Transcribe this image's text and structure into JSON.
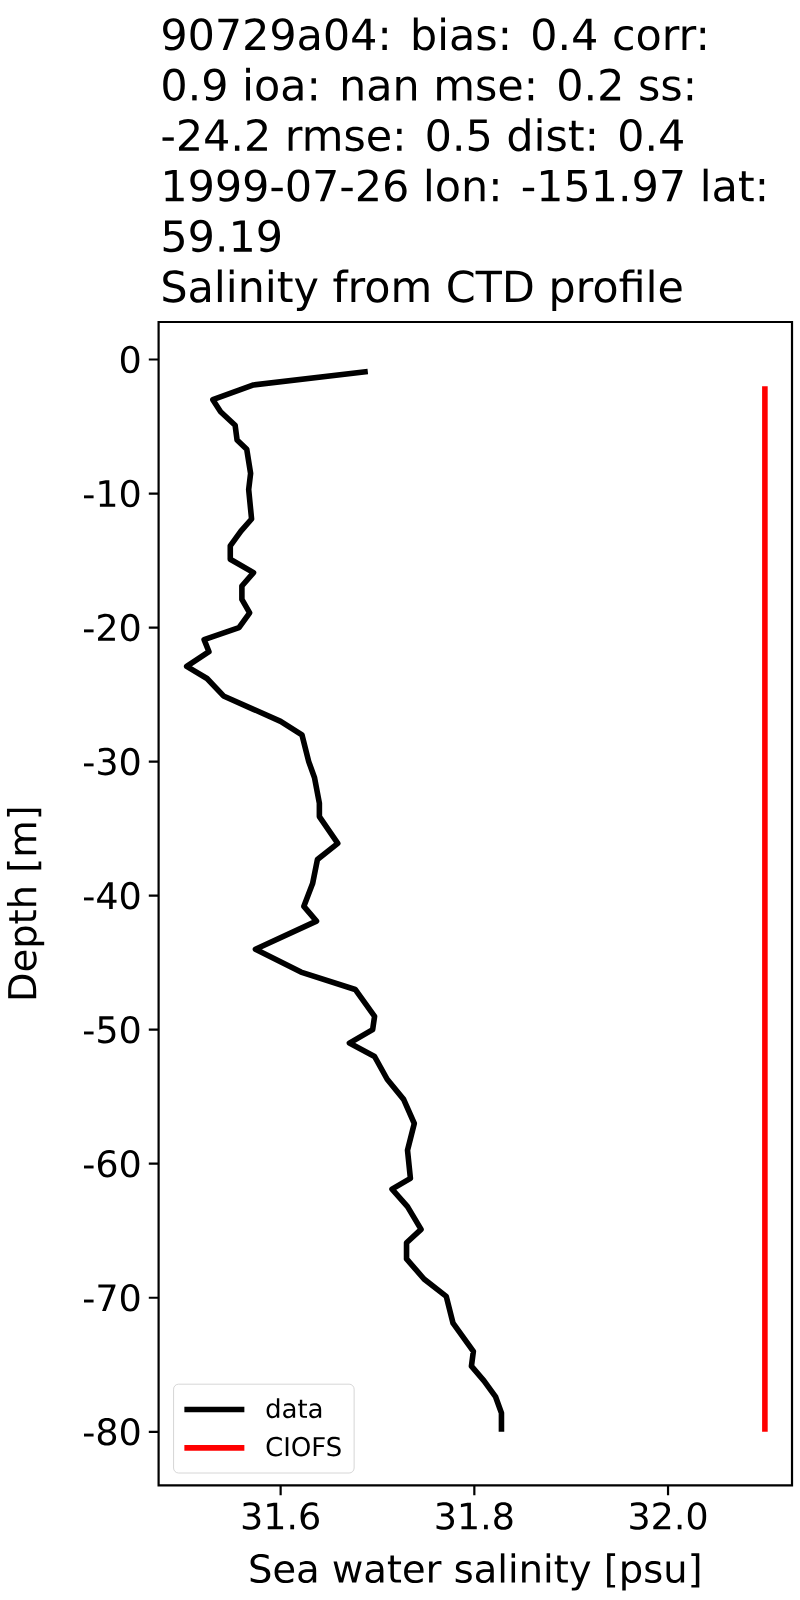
{
  "chart_data": {
    "type": "line",
    "title": "90729a04: bias: 0.4 corr: 0.9 ioa: nan mse: 0.2 ss: -24.2 rmse: 0.5 dist: 0.4",
    "subtitle": "1999-07-26 lon: -151.97 lat: 59.19",
    "annotations": [
      "Salinity from CTD profile"
    ],
    "xlabel": "Sea water salinity [psu]",
    "ylabel": "Depth [m]",
    "series": [
      {
        "name": "data",
        "color": "#000000",
        "x": [
          31.69,
          31.572,
          31.53,
          31.538,
          31.553,
          31.555,
          31.565,
          31.569,
          31.567,
          31.57,
          31.559,
          31.548,
          31.548,
          31.572,
          31.56,
          31.56,
          31.568,
          31.557,
          31.521,
          31.526,
          31.503,
          31.524,
          31.541,
          31.572,
          31.6,
          31.622,
          31.629,
          31.635,
          31.64,
          31.64,
          31.659,
          31.638,
          31.633,
          31.624,
          31.637,
          31.574,
          31.621,
          31.677,
          31.697,
          31.695,
          31.671,
          31.697,
          31.71,
          31.727,
          31.738,
          31.731,
          31.734,
          31.715,
          31.731,
          31.745,
          31.73,
          31.73,
          31.748,
          31.771,
          31.778,
          31.794,
          31.799,
          31.797,
          31.81,
          31.822,
          31.828,
          31.828
        ],
        "values": [
          -0.9,
          -1.9,
          -3.0,
          -3.9,
          -4.9,
          -6.0,
          -6.7,
          -8.5,
          -9.7,
          -11.9,
          -12.8,
          -13.9,
          -14.9,
          -15.9,
          -16.9,
          -17.9,
          -18.9,
          -20.0,
          -20.9,
          -21.8,
          -22.9,
          -23.8,
          -25.1,
          -26.1,
          -27.0,
          -28.0,
          -30.0,
          -31.2,
          -33.1,
          -34.1,
          -36.1,
          -37.3,
          -39.1,
          -40.8,
          -41.9,
          -44.0,
          -45.7,
          -47.0,
          -49.0,
          -50.0,
          -51.0,
          -52.0,
          -53.7,
          -55.2,
          -57.0,
          -59.0,
          -61.1,
          -61.9,
          -63.2,
          -64.9,
          -65.9,
          -67.1,
          -68.6,
          -69.9,
          -71.9,
          -73.5,
          -74.0,
          -75.1,
          -76.2,
          -77.4,
          -78.6,
          -80.0
        ]
      },
      {
        "name": "CIOFS",
        "color": "#ff0000",
        "x": [
          32.1,
          32.1
        ],
        "values": [
          -2,
          -80
        ]
      }
    ],
    "xlim": [
      31.474,
      32.128
    ],
    "ylim": [
      -84.0,
      2.8
    ],
    "xticks": [
      31.6,
      31.8,
      {
        "value": 32.0,
        "label": "32.0"
      }
    ],
    "yticks": [
      0,
      -10,
      -20,
      -30,
      -40,
      -50,
      -60,
      -70,
      -80
    ],
    "legend": "bottom left",
    "marker": "none",
    "line_style": "solid"
  }
}
